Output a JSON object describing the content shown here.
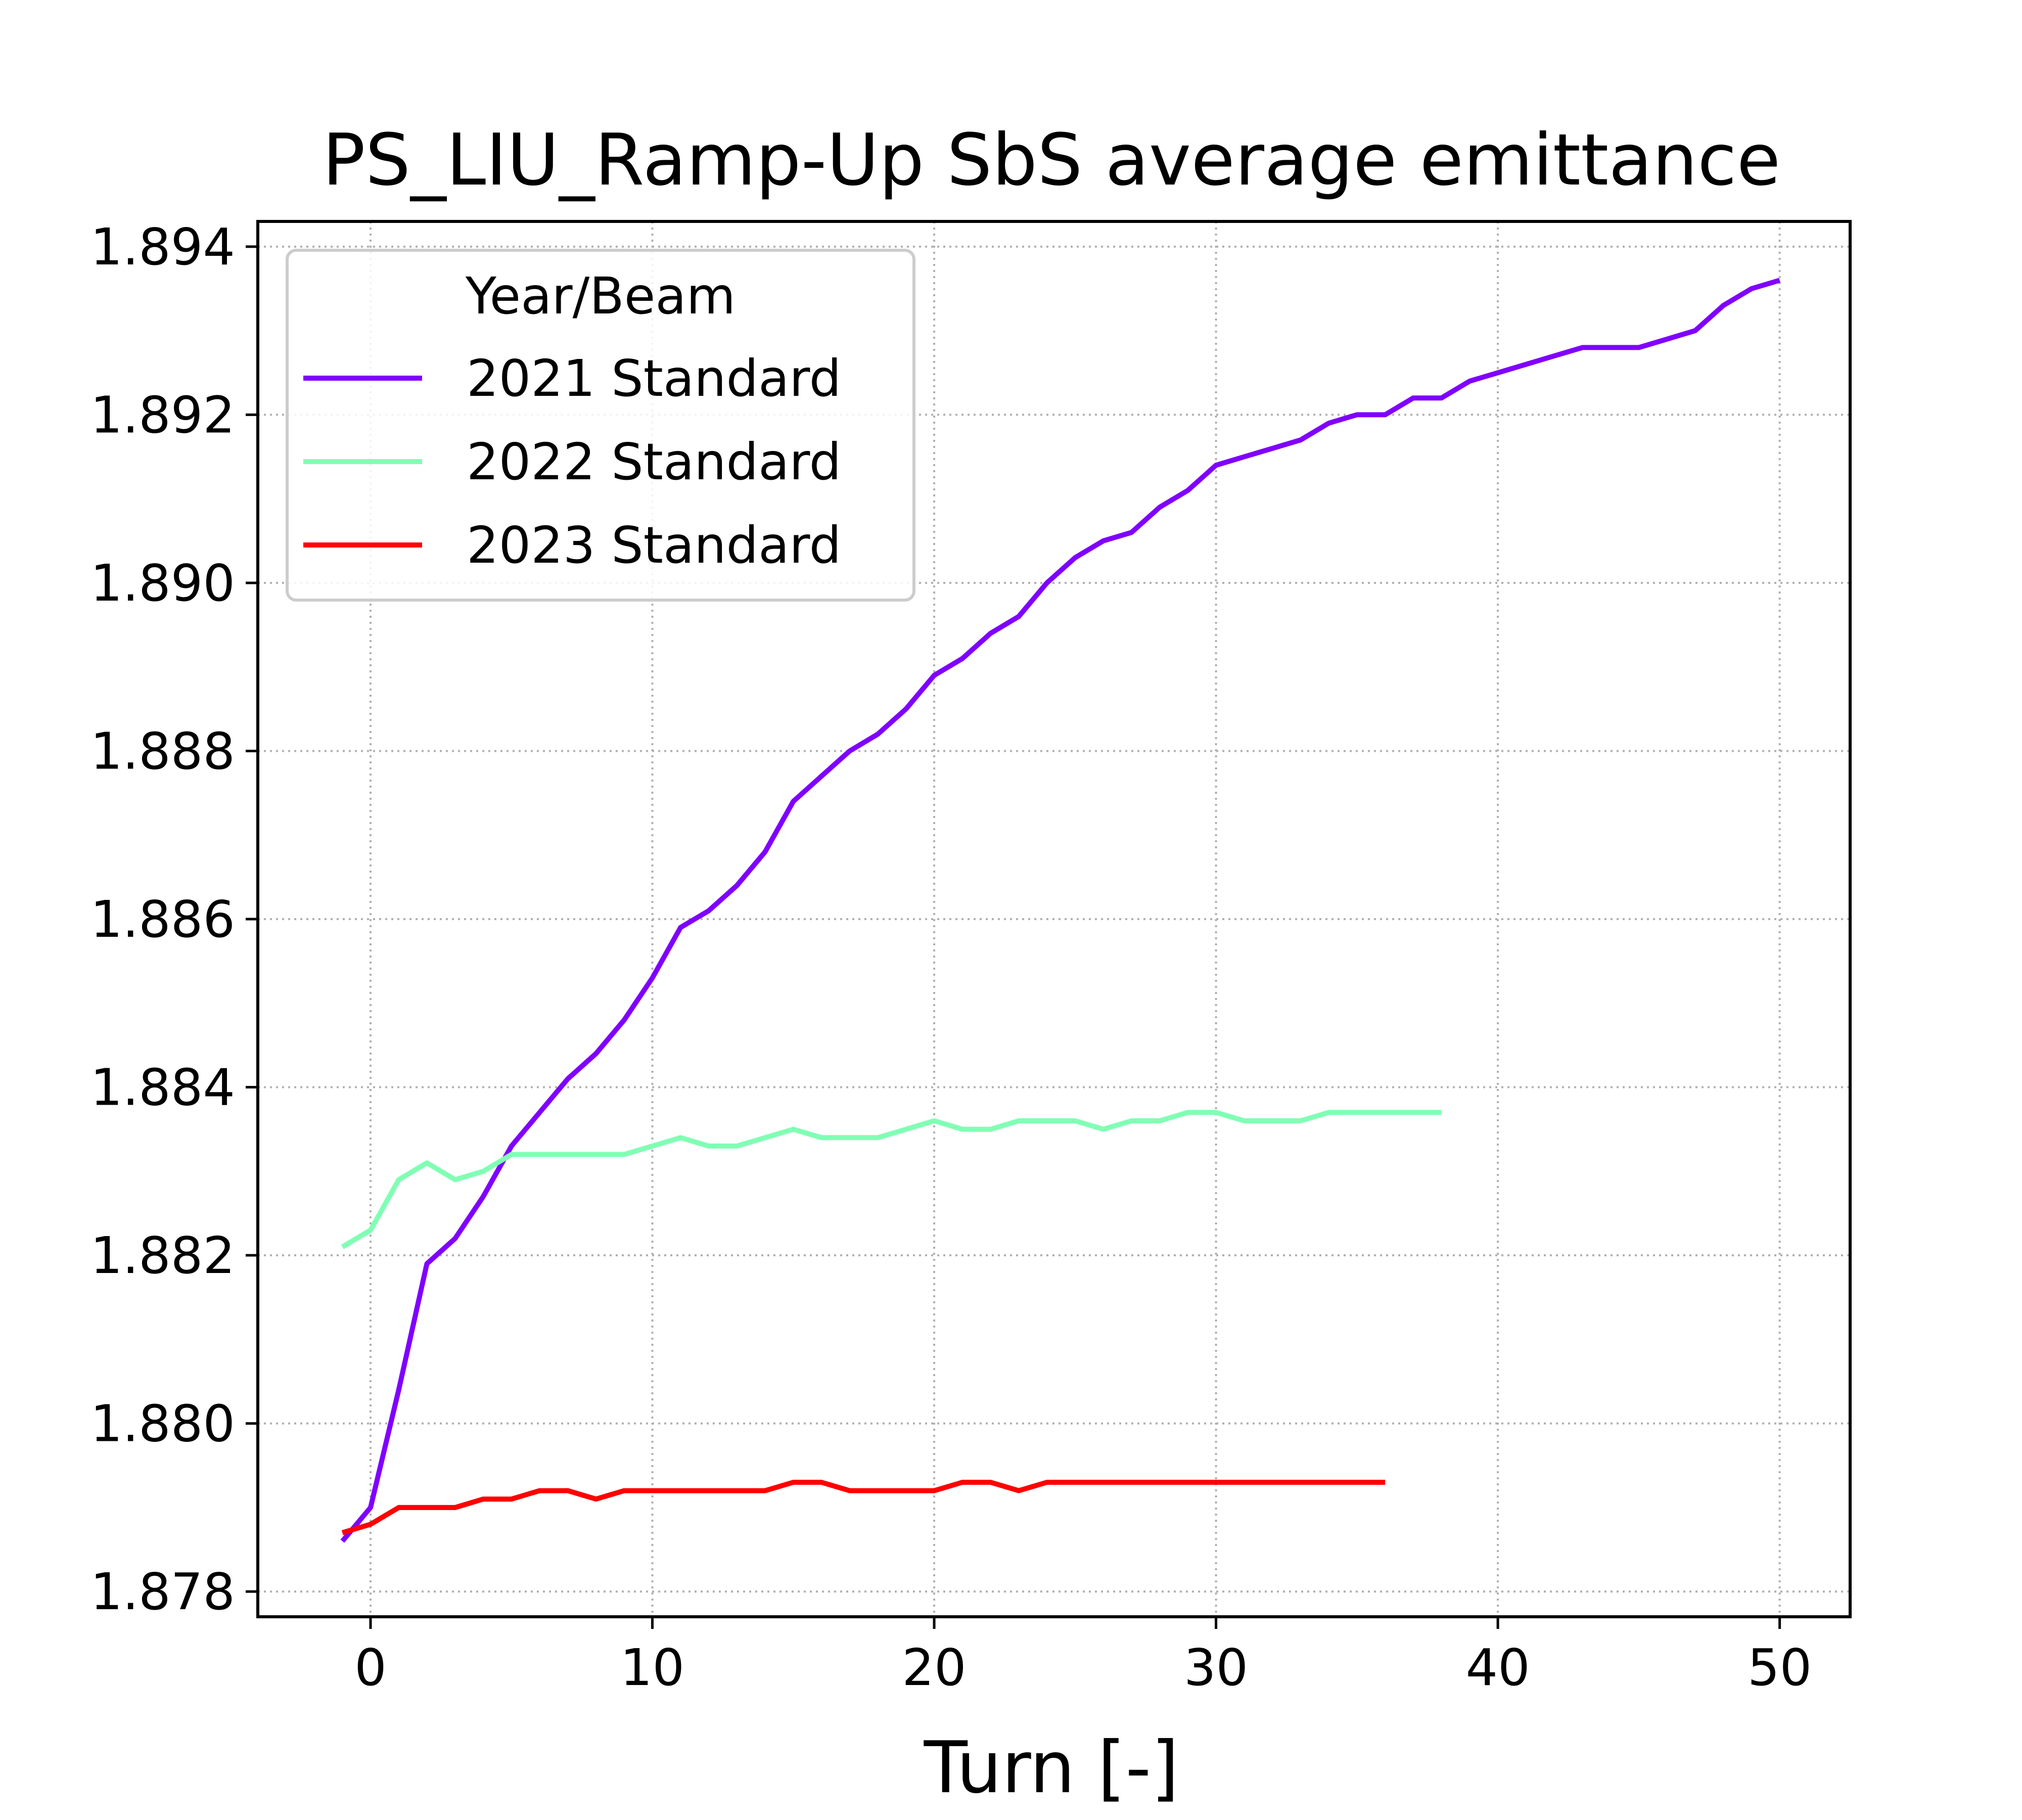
{
  "chart_data": {
    "type": "line",
    "title": "PS_LIU_Ramp-Up SbS average emittance",
    "xlabel": "Turn [-]",
    "ylabel": "",
    "xlim": [
      -4,
      52.5
    ],
    "ylim": [
      1.8777,
      1.8943
    ],
    "x_ticks": [
      0,
      10,
      20,
      30,
      40,
      50
    ],
    "y_ticks": [
      1.878,
      1.88,
      1.882,
      1.884,
      1.886,
      1.888,
      1.89,
      1.892,
      1.894
    ],
    "x_tick_labels": [
      "0",
      "10",
      "20",
      "30",
      "40",
      "50"
    ],
    "y_tick_labels": [
      "1.878",
      "1.880",
      "1.882",
      "1.884",
      "1.886",
      "1.888",
      "1.890",
      "1.892",
      "1.894"
    ],
    "grid": true,
    "legend": {
      "title": "Year/Beam",
      "placement": "top-left"
    },
    "series": [
      {
        "name": "2021 Standard",
        "color": "#8000ff",
        "x": [
          -1,
          0,
          1,
          2,
          3,
          4,
          5,
          6,
          7,
          8,
          9,
          10,
          11,
          12,
          13,
          14,
          15,
          16,
          17,
          18,
          19,
          20,
          21,
          22,
          23,
          24,
          25,
          26,
          27,
          28,
          29,
          30,
          31,
          32,
          33,
          34,
          35,
          36,
          37,
          38,
          39,
          40,
          41,
          42,
          43,
          44,
          45,
          46,
          47,
          48,
          49,
          50
        ],
        "values": [
          1.8786,
          1.879,
          1.8804,
          1.8819,
          1.8822,
          1.8827,
          1.8833,
          1.8837,
          1.8841,
          1.8844,
          1.8848,
          1.8853,
          1.8859,
          1.8861,
          1.8864,
          1.8868,
          1.8874,
          1.8877,
          1.888,
          1.8882,
          1.8885,
          1.8889,
          1.8891,
          1.8894,
          1.8896,
          1.89,
          1.8903,
          1.8905,
          1.8906,
          1.8909,
          1.8911,
          1.8914,
          1.8915,
          1.8916,
          1.8917,
          1.8919,
          1.892,
          1.892,
          1.8922,
          1.8922,
          1.8924,
          1.8925,
          1.8926,
          1.8927,
          1.8928,
          1.8928,
          1.8928,
          1.8929,
          1.893,
          1.8933,
          1.8935,
          1.8936
        ]
      },
      {
        "name": "2022 Standard",
        "color": "#80ffb4",
        "x": [
          -1,
          0,
          1,
          2,
          3,
          4,
          5,
          6,
          7,
          8,
          9,
          10,
          11,
          12,
          13,
          14,
          15,
          16,
          17,
          18,
          19,
          20,
          21,
          22,
          23,
          24,
          25,
          26,
          27,
          28,
          29,
          30,
          31,
          32,
          33,
          34,
          35,
          36,
          37,
          38
        ],
        "values": [
          1.8821,
          1.8823,
          1.8829,
          1.8831,
          1.8829,
          1.883,
          1.8832,
          1.8832,
          1.8832,
          1.8832,
          1.8832,
          1.8833,
          1.8834,
          1.8833,
          1.8833,
          1.8834,
          1.8835,
          1.8834,
          1.8834,
          1.8834,
          1.8835,
          1.8836,
          1.8835,
          1.8835,
          1.8836,
          1.8836,
          1.8836,
          1.8835,
          1.8836,
          1.8836,
          1.8837,
          1.8837,
          1.8836,
          1.8836,
          1.8836,
          1.8837,
          1.8837,
          1.8837,
          1.8837,
          1.8837
        ]
      },
      {
        "name": "2023 Standard",
        "color": "#ff0000",
        "x": [
          -1,
          0,
          1,
          2,
          3,
          4,
          5,
          6,
          7,
          8,
          9,
          10,
          11,
          12,
          13,
          14,
          15,
          16,
          17,
          18,
          19,
          20,
          21,
          22,
          23,
          24,
          25,
          26,
          27,
          28,
          29,
          30,
          31,
          32,
          33,
          34,
          35,
          36
        ],
        "values": [
          1.8787,
          1.8788,
          1.879,
          1.879,
          1.879,
          1.8791,
          1.8791,
          1.8792,
          1.8792,
          1.8791,
          1.8792,
          1.8792,
          1.8792,
          1.8792,
          1.8792,
          1.8792,
          1.8793,
          1.8793,
          1.8792,
          1.8792,
          1.8792,
          1.8792,
          1.8793,
          1.8793,
          1.8792,
          1.8793,
          1.8793,
          1.8793,
          1.8793,
          1.8793,
          1.8793,
          1.8793,
          1.8793,
          1.8793,
          1.8793,
          1.8793,
          1.8793,
          1.8793
        ]
      }
    ]
  }
}
